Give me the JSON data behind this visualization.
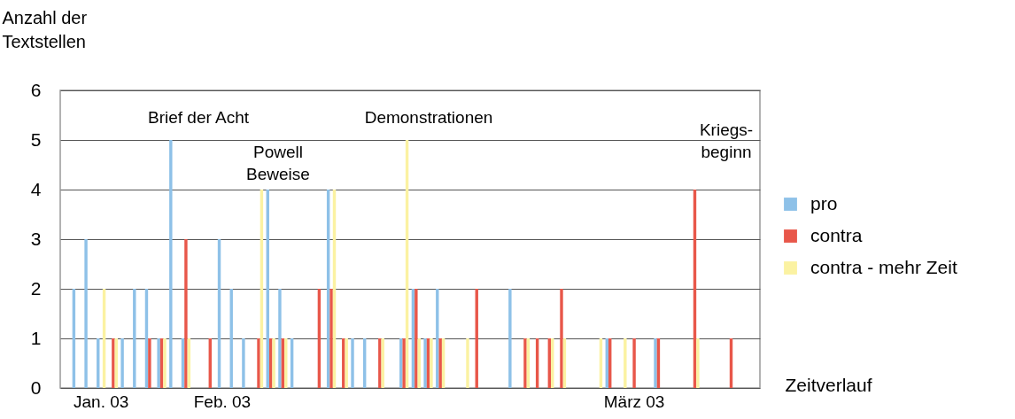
{
  "chart_data": {
    "type": "bar",
    "ylabel": "Anzahl der\nTextstellen",
    "xlabel": "Zeitverlauf",
    "categories": [
      null,
      null,
      null,
      "Jan. 03",
      null,
      null,
      null,
      null,
      null,
      null,
      null,
      null,
      null,
      "Feb. 03",
      null,
      null,
      null,
      null,
      null,
      null,
      null,
      null,
      null,
      null,
      null,
      null,
      null,
      null,
      null,
      null,
      null,
      null,
      null,
      null,
      null,
      null,
      null,
      null,
      null,
      null,
      null,
      null,
      null,
      null,
      null,
      null,
      null,
      "März 03",
      null,
      null,
      null,
      null,
      null,
      null,
      null,
      null,
      null,
      null
    ],
    "series": [
      {
        "name": "pro",
        "color": "#8ec1e8",
        "values": [
          null,
          2,
          3,
          1,
          null,
          1,
          2,
          2,
          1,
          5,
          1,
          null,
          null,
          3,
          2,
          1,
          null,
          4,
          2,
          1,
          null,
          null,
          4,
          null,
          1,
          1,
          null,
          null,
          1,
          2,
          1,
          2,
          null,
          null,
          null,
          null,
          null,
          2,
          null,
          null,
          null,
          null,
          null,
          null,
          null,
          1,
          null,
          null,
          null,
          1,
          null,
          null,
          null,
          null,
          null,
          null,
          null,
          null
        ]
      },
      {
        "name": "contra",
        "color": "#e8574a",
        "values": [
          null,
          null,
          null,
          null,
          1,
          null,
          null,
          1,
          1,
          null,
          3,
          null,
          1,
          null,
          null,
          null,
          1,
          1,
          1,
          null,
          null,
          2,
          2,
          1,
          null,
          null,
          1,
          null,
          1,
          2,
          1,
          1,
          null,
          null,
          2,
          null,
          null,
          null,
          1,
          1,
          1,
          2,
          null,
          null,
          null,
          1,
          null,
          1,
          null,
          1,
          null,
          null,
          4,
          null,
          null,
          1,
          null,
          null
        ]
      },
      {
        "name": "contra - mehr Zeit",
        "color": "#fbf2a2",
        "values": [
          null,
          null,
          null,
          2,
          1,
          null,
          null,
          null,
          1,
          null,
          1,
          null,
          null,
          null,
          null,
          null,
          4,
          1,
          1,
          null,
          null,
          null,
          4,
          1,
          null,
          null,
          1,
          null,
          5,
          1,
          1,
          1,
          null,
          1,
          null,
          null,
          null,
          null,
          1,
          null,
          1,
          1,
          null,
          null,
          1,
          null,
          1,
          null,
          null,
          null,
          null,
          null,
          1,
          null,
          null,
          null,
          null,
          null
        ]
      }
    ],
    "ylim": [
      0,
      6
    ],
    "yticks": [
      0,
      1,
      2,
      3,
      4,
      5,
      6
    ],
    "grid": "y",
    "legend": "right",
    "annotations": [
      "Brief der Acht",
      "Powell\nBeweise",
      "Demonstrationen",
      "Kriegs-\nbeginn"
    ]
  }
}
